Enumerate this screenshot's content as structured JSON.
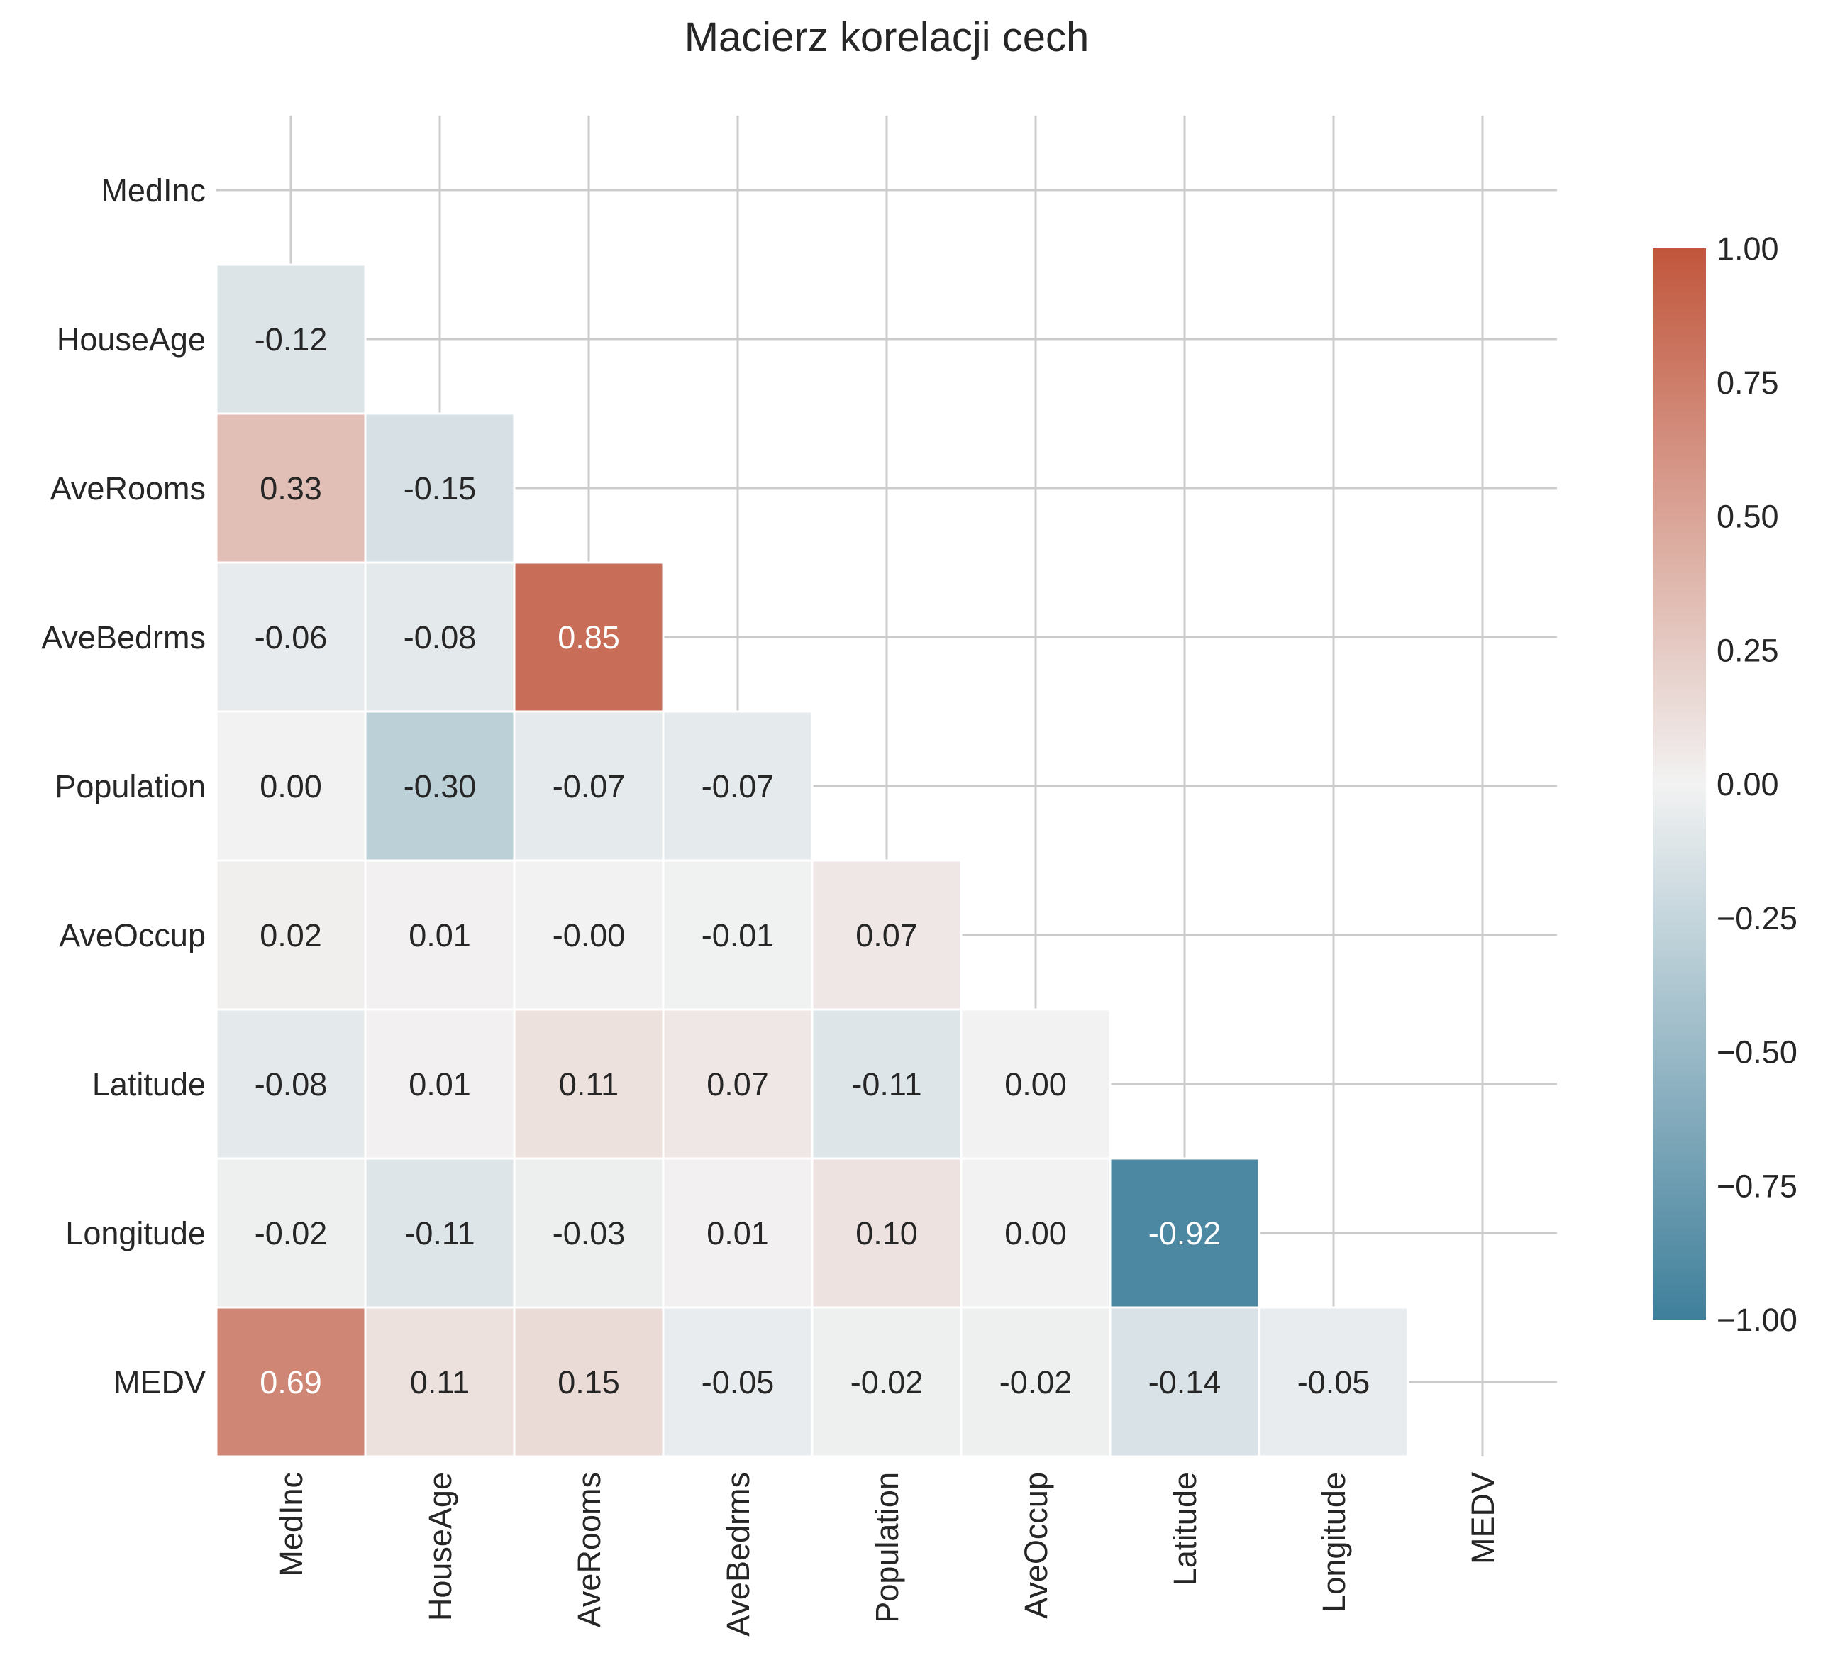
{
  "chart_data": {
    "type": "heatmap",
    "title": "Macierz korelacji cech",
    "variables": [
      "MedInc",
      "HouseAge",
      "AveRooms",
      "AveBedrms",
      "Population",
      "AveOccup",
      "Latitude",
      "Longitude",
      "MEDV"
    ],
    "mask": "upper-triangle-including-diagonal",
    "values": [
      [
        null,
        null,
        null,
        null,
        null,
        null,
        null,
        null,
        null
      ],
      [
        -0.12,
        null,
        null,
        null,
        null,
        null,
        null,
        null,
        null
      ],
      [
        0.33,
        -0.15,
        null,
        null,
        null,
        null,
        null,
        null,
        null
      ],
      [
        -0.06,
        -0.08,
        0.85,
        null,
        null,
        null,
        null,
        null,
        null
      ],
      [
        0.0,
        -0.3,
        -0.07,
        -0.07,
        null,
        null,
        null,
        null,
        null
      ],
      [
        0.02,
        0.01,
        -0.0,
        -0.01,
        0.07,
        null,
        null,
        null,
        null
      ],
      [
        -0.08,
        0.01,
        0.11,
        0.07,
        -0.11,
        0.0,
        null,
        null,
        null
      ],
      [
        -0.02,
        -0.11,
        -0.03,
        0.01,
        0.1,
        0.0,
        -0.92,
        null,
        null
      ],
      [
        0.69,
        0.11,
        0.15,
        -0.05,
        -0.02,
        -0.02,
        -0.14,
        -0.05,
        null
      ]
    ],
    "labels": [
      [
        null,
        null,
        null,
        null,
        null,
        null,
        null,
        null,
        null
      ],
      [
        "-0.12",
        null,
        null,
        null,
        null,
        null,
        null,
        null,
        null
      ],
      [
        "0.33",
        "-0.15",
        null,
        null,
        null,
        null,
        null,
        null,
        null
      ],
      [
        "-0.06",
        "-0.08",
        "0.85",
        null,
        null,
        null,
        null,
        null,
        null
      ],
      [
        "0.00",
        "-0.30",
        "-0.07",
        "-0.07",
        null,
        null,
        null,
        null,
        null
      ],
      [
        "0.02",
        "0.01",
        "-0.00",
        "-0.01",
        "0.07",
        null,
        null,
        null,
        null
      ],
      [
        "-0.08",
        "0.01",
        "0.11",
        "0.07",
        "-0.11",
        "0.00",
        null,
        null,
        null
      ],
      [
        "-0.02",
        "-0.11",
        "-0.03",
        "0.01",
        "0.10",
        "0.00",
        "-0.92",
        null,
        null
      ],
      [
        "0.69",
        "0.11",
        "0.15",
        "-0.05",
        "-0.02",
        "-0.02",
        "-0.14",
        "-0.05",
        null
      ]
    ],
    "colorbar": {
      "vmin": -1.0,
      "vmax": 1.0,
      "ticks": [
        1.0,
        0.75,
        0.5,
        0.25,
        0.0,
        -0.25,
        -0.5,
        -0.75,
        -1.0
      ],
      "tick_labels": [
        "1.00",
        "0.75",
        "0.50",
        "0.25",
        "0.00",
        "−0.25",
        "−0.50",
        "−0.75",
        "−1.00"
      ],
      "colors": {
        "negative": "#3f7f9b",
        "neutral": "#f2f2f2",
        "positive": "#c1563c"
      }
    },
    "grid": true
  }
}
